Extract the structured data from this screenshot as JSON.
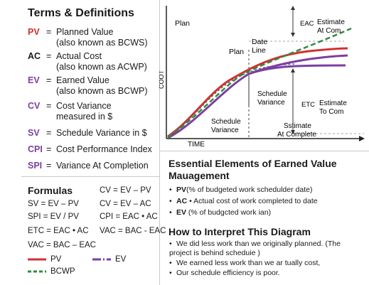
{
  "terms": {
    "title": "Terms & Definitions",
    "items": [
      {
        "abbr": "PV",
        "color": "#d32f2f",
        "def": "Planned Value",
        "sub": "(also known as BCWS)"
      },
      {
        "abbr": "AC",
        "color": "#1a1a1a",
        "def": "Actual Cost",
        "sub": "(also known as ACWP)"
      },
      {
        "abbr": "EV",
        "color": "#7b3fa0",
        "def": "Earned Value",
        "sub": "(also known as BCWP)"
      },
      {
        "abbr": "CV",
        "color": "#7b3fa0",
        "def": "Cost Variance",
        "sub": "measured in $"
      },
      {
        "abbr": "SV",
        "color": "#7b3fa0",
        "def": "Schedule Variance in $",
        "sub": ""
      },
      {
        "abbr": "CPI",
        "color": "#7b3fa0",
        "def": "Cost Performance Index",
        "sub": ""
      },
      {
        "abbr": "SPI",
        "color": "#7b3fa0",
        "def": "Variance At Completion",
        "sub": ""
      }
    ]
  },
  "formulas": {
    "title": "Formulas",
    "left": [
      "SV = EV – PV",
      "SPI = EV / PV",
      "ETC = EAC • AC",
      "VAC = BAC – EAC"
    ],
    "right": [
      "CV = EV – PV",
      "CV = EV – AC",
      "CPI = EAC • AC",
      "VAC = BAC - EAC"
    ],
    "legend": [
      {
        "label": "PV",
        "color": "#d32f2f",
        "style": "solid"
      },
      {
        "label": "EV",
        "color": "#7b3fa0",
        "style": "dashdot"
      },
      {
        "label": "BCWP",
        "color": "#2e8b3e",
        "style": "dashed"
      }
    ]
  },
  "diagram": {
    "plan_top": "Plan",
    "plan_mid": "Plan",
    "time_label": "TIME",
    "cost_label": "COOT",
    "date_line": [
      "Date",
      "Line"
    ],
    "schedule_variance_mid": [
      "Schedule",
      "Variance"
    ],
    "schedule_variance_low": [
      "Schedule",
      "Variance"
    ],
    "estimate_at_complete": [
      "Sstimate",
      "At Complete"
    ],
    "eac_label": [
      "EAC",
      "Estimate",
      "At Com"
    ],
    "etc_label": [
      "ETC",
      "Estimate",
      "To Com"
    ],
    "colors": {
      "pv": "#d32f2f",
      "ev": "#7b3fa0",
      "bcwp": "#2e8b3e",
      "ac": "#555555"
    }
  },
  "essential": {
    "title": "Essential Elements of Earned Value Mauagement",
    "bullets": [
      {
        "key": "PV",
        "text": "(% of budgeted work schedulder date)"
      },
      {
        "key": "AC",
        "text": " • Actual cost of work completed to date"
      },
      {
        "key": "EV",
        "text": " (% of budgcted work ian)"
      }
    ]
  },
  "interpret": {
    "title": "How to Interpret This Diagram",
    "bullets": [
      "We did less work than we originally planned. (The project is behind scheduie )",
      "We earned less work than we ar tually cost,",
      "Our schedule efficiency is poor."
    ]
  }
}
